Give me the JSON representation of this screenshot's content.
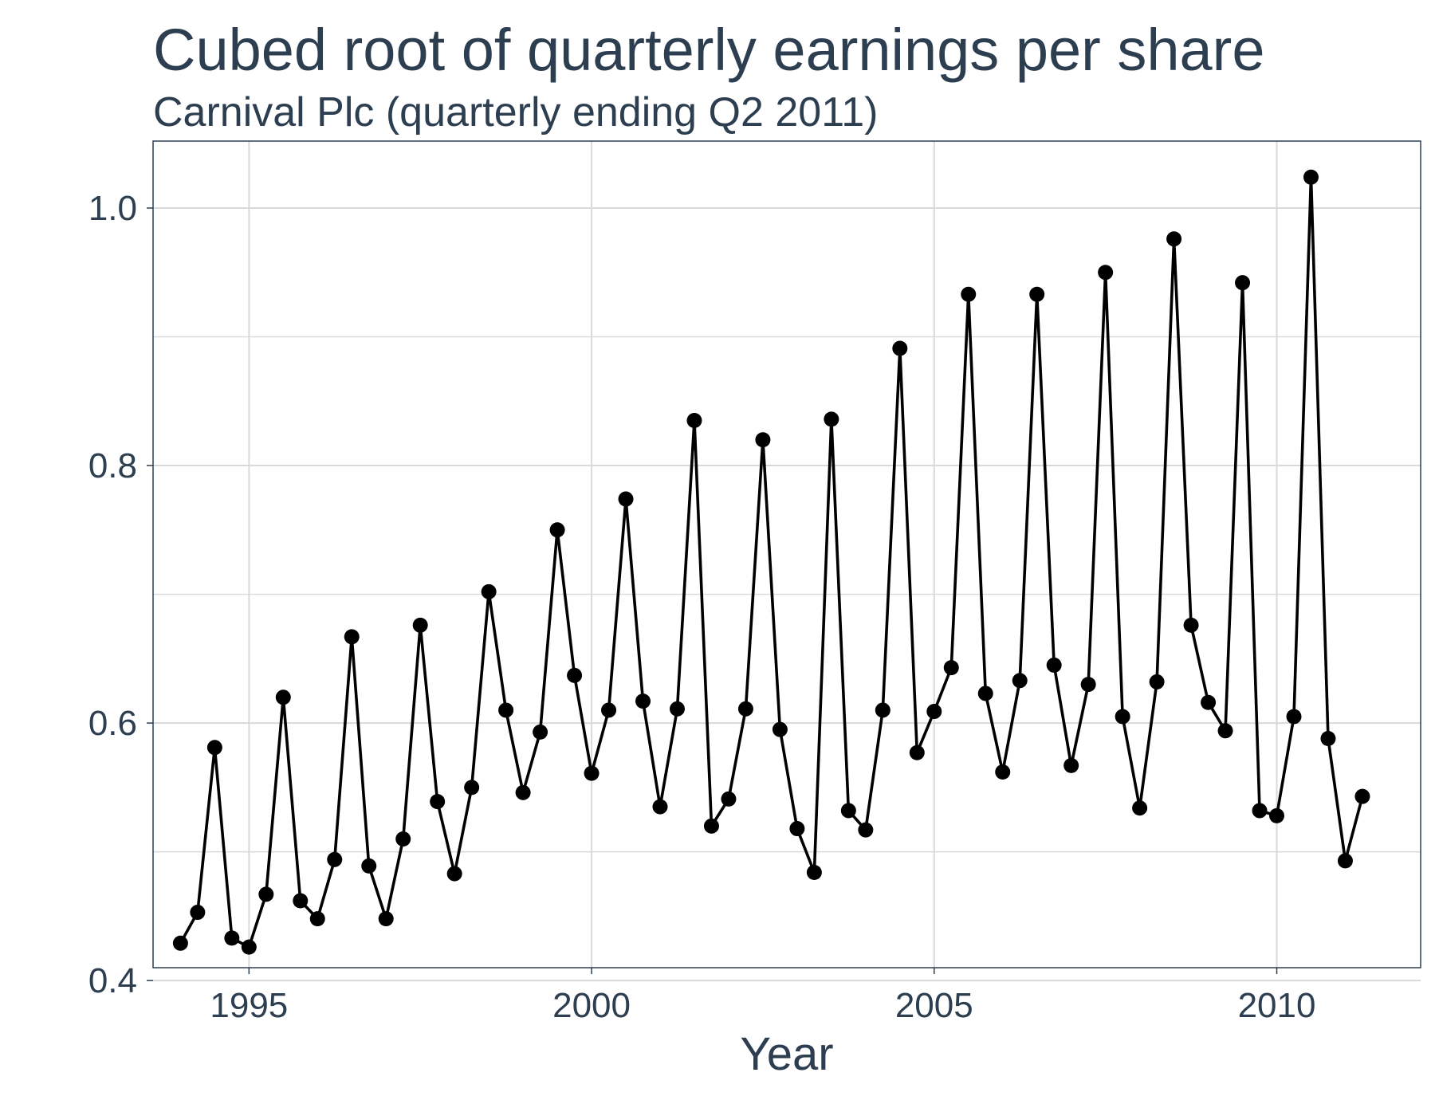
{
  "chart_data": {
    "type": "line",
    "title": "Cubed root of quarterly earnings per share",
    "subtitle": "Carnival Plc (quarterly ending Q2 2011)",
    "xlabel": "Year",
    "ylabel": "",
    "xlim": [
      1993.6,
      2012.1
    ],
    "ylim": [
      0.41,
      1.052
    ],
    "xticks": [
      1995,
      2000,
      2005,
      2010
    ],
    "xtick_labels": [
      "1995",
      "2000",
      "2005",
      "2010"
    ],
    "yticks": [
      0.4,
      0.6,
      0.8,
      1.0
    ],
    "ytick_labels": [
      "0.4",
      "0.6",
      "0.8",
      "1.0"
    ],
    "yminor": [
      0.5,
      0.7,
      0.9
    ],
    "grid": true,
    "legend": "none",
    "series": [
      {
        "name": "Cubed root EPS",
        "markers": true,
        "x": [
          1994.0,
          1994.25,
          1994.5,
          1994.75,
          1995.0,
          1995.25,
          1995.5,
          1995.75,
          1996.0,
          1996.25,
          1996.5,
          1996.75,
          1997.0,
          1997.25,
          1997.5,
          1997.75,
          1998.0,
          1998.25,
          1998.5,
          1998.75,
          1999.0,
          1999.25,
          1999.5,
          1999.75,
          2000.0,
          2000.25,
          2000.5,
          2000.75,
          2001.0,
          2001.25,
          2001.5,
          2001.75,
          2002.0,
          2002.25,
          2002.5,
          2002.75,
          2003.0,
          2003.25,
          2003.5,
          2003.75,
          2004.0,
          2004.25,
          2004.5,
          2004.75,
          2005.0,
          2005.25,
          2005.5,
          2005.75,
          2006.0,
          2006.25,
          2006.5,
          2006.75,
          2007.0,
          2007.25,
          2007.5,
          2007.75,
          2008.0,
          2008.25,
          2008.5,
          2008.75,
          2009.0,
          2009.25,
          2009.5,
          2009.75,
          2010.0,
          2010.25,
          2010.5,
          2010.75,
          2011.0,
          2011.25
        ],
        "y": [
          0.429,
          0.453,
          0.581,
          0.433,
          0.426,
          0.467,
          0.62,
          0.462,
          0.448,
          0.494,
          0.667,
          0.489,
          0.448,
          0.51,
          0.676,
          0.539,
          0.483,
          0.55,
          0.702,
          0.61,
          0.546,
          0.593,
          0.75,
          0.637,
          0.561,
          0.61,
          0.774,
          0.617,
          0.535,
          0.611,
          0.835,
          0.52,
          0.541,
          0.611,
          0.82,
          0.595,
          0.518,
          0.484,
          0.836,
          0.532,
          0.517,
          0.61,
          0.891,
          0.577,
          0.609,
          0.643,
          0.933,
          0.623,
          0.562,
          0.633,
          0.933,
          0.645,
          0.567,
          0.63,
          0.95,
          0.605,
          0.534,
          0.632,
          0.976,
          0.676,
          0.616,
          0.594,
          0.942,
          0.532,
          0.528,
          0.605,
          1.024,
          0.588,
          0.493,
          0.543
        ]
      }
    ]
  }
}
